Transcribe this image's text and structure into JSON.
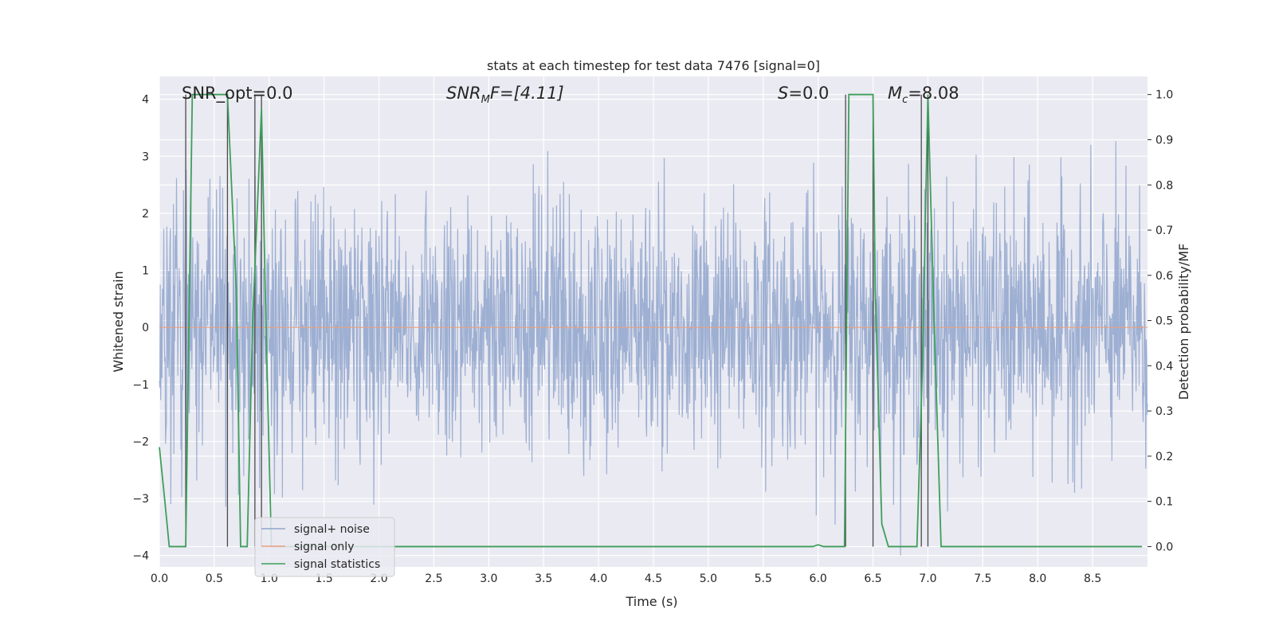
{
  "chart_data": {
    "type": "line",
    "title": "stats at each timestep for test data 7476 [signal=0]",
    "xlabel": "Time (s)",
    "ylabel": "Whitened strain",
    "y2label": "Detection probability/MF",
    "xlim": [
      0.0,
      9.0
    ],
    "ylim": [
      -4.2,
      4.4
    ],
    "y2lim": [
      -0.045,
      1.04
    ],
    "x_ticks": [
      "0.0",
      "0.5",
      "1.0",
      "1.5",
      "2.0",
      "2.5",
      "3.0",
      "3.5",
      "4.0",
      "4.5",
      "5.0",
      "5.5",
      "6.0",
      "6.5",
      "7.0",
      "7.5",
      "8.0",
      "8.5"
    ],
    "y_ticks": [
      "4",
      "3",
      "2",
      "1",
      "0",
      "−1",
      "−2",
      "−3",
      "−4"
    ],
    "y2_ticks": [
      "1.0",
      "0.9",
      "0.8",
      "0.7",
      "0.6",
      "0.5",
      "0.4",
      "0.3",
      "0.2",
      "0.1",
      "0.0"
    ],
    "grid": true,
    "legend_position": "lower-left",
    "annotations": {
      "snr_opt": "SNR_opt=0.0",
      "snr_mf_main": "SNR",
      "snr_mf_sub": "M",
      "snr_mf_tail": "F=[4.11]",
      "s_main": "S",
      "s_tail": "=0.0",
      "mc_main": "M",
      "mc_sub": "c",
      "mc_tail": "=8.08"
    },
    "series": [
      {
        "name": "signal+ noise",
        "color": "#8fa5cd",
        "kind": "noise",
        "amplitude_std": 1.1,
        "range": [
          -4.0,
          4.0
        ]
      },
      {
        "name": "signal only",
        "color": "#e8a07e",
        "kind": "constant",
        "value": 0.0
      },
      {
        "name": "signal statistics",
        "color": "#3e9f5a",
        "axis": "right",
        "x": [
          0.0,
          0.05,
          0.09,
          0.12,
          0.2,
          0.24,
          0.3,
          0.34,
          0.6,
          0.62,
          0.7,
          0.74,
          0.8,
          0.85,
          0.93,
          0.97,
          1.02,
          1.1,
          1.4,
          2.0,
          3.0,
          4.0,
          5.0,
          5.95,
          6.0,
          6.05,
          6.24,
          6.28,
          6.5,
          6.52,
          6.58,
          6.64,
          6.9,
          6.95,
          7.0,
          7.05,
          7.12,
          7.2,
          8.0,
          8.95
        ],
        "y": [
          0.22,
          0.1,
          0.0,
          0.0,
          0.0,
          0.0,
          1.0,
          1.0,
          1.0,
          1.0,
          0.57,
          0.0,
          0.0,
          0.5,
          0.97,
          0.5,
          0.0,
          0.0,
          0.0,
          0.0,
          0.0,
          0.0,
          0.0,
          0.0,
          0.004,
          0.0,
          0.0,
          1.0,
          1.0,
          0.57,
          0.05,
          0.0,
          0.0,
          0.4,
          1.0,
          0.55,
          0.0,
          0.0,
          0.0,
          0.0
        ]
      }
    ],
    "vertical_lines": [
      0.24,
      0.62,
      0.87,
      0.93,
      6.25,
      6.5,
      6.94,
      7.0
    ],
    "vertical_line_color": "#4a4a4a"
  }
}
